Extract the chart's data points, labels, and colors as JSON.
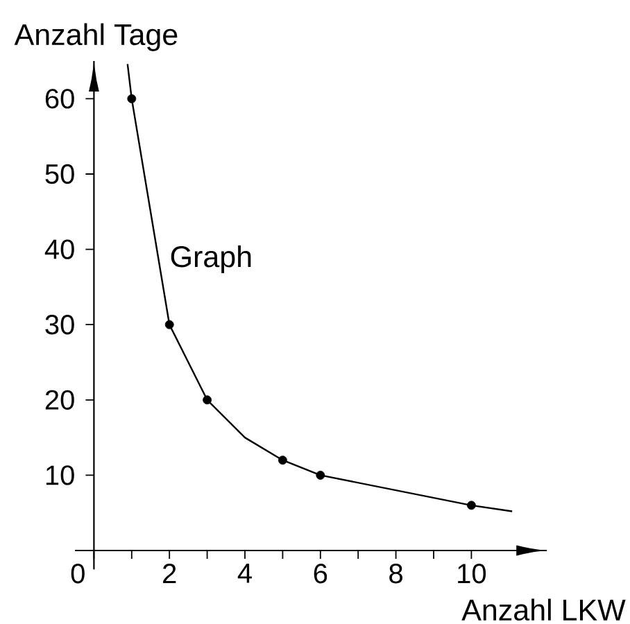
{
  "chart_data": {
    "type": "line",
    "xlabel": "Anzahl LKW",
    "ylabel": "Anzahl Tage",
    "xlim": [
      -0.5,
      12
    ],
    "ylim": [
      -2.5,
      65
    ],
    "xticks": [
      {
        "value": 0,
        "label": "0"
      },
      {
        "value": 1,
        "label": null
      },
      2,
      {
        "value": 3,
        "label": null
      },
      4,
      {
        "value": 5,
        "label": null
      },
      6,
      {
        "value": 7,
        "label": null
      },
      8,
      {
        "value": 9,
        "label": null
      },
      10
    ],
    "yticks": [
      10,
      20,
      30,
      40,
      50,
      60
    ],
    "series": [
      {
        "name": "Graph",
        "color": "#000000",
        "marker": "none",
        "x": [
          0.89,
          1,
          2,
          3,
          4,
          5,
          6,
          10,
          11.08
        ],
        "values": [
          64.6,
          60,
          30,
          20,
          15,
          12,
          10,
          6,
          5.2
        ]
      },
      {
        "type": "scatter",
        "color": "#000000",
        "marker": "circle",
        "x": [
          1,
          2,
          3,
          5,
          6,
          10
        ],
        "values": [
          60,
          30,
          20,
          12,
          10,
          6
        ]
      }
    ]
  }
}
